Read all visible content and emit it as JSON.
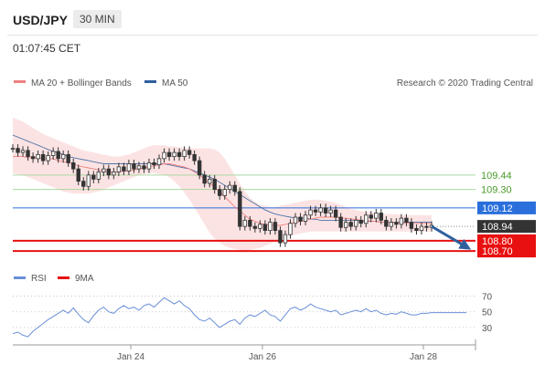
{
  "header": {
    "pair": "USD/JPY",
    "timeframe": "30 MIN",
    "time": "01:07:45 CET"
  },
  "legend": {
    "ma20": "MA 20 + Bollinger Bands",
    "ma50": "MA 50",
    "credit": "Research © 2020 Trading Central",
    "rsi": "RSI",
    "ma9": "9MA"
  },
  "colors": {
    "ma20": "#f08080",
    "ma50": "#2f5f9e",
    "band": "#fbd9d9",
    "support": "#e81010",
    "resistance_green": "#a8d8a0",
    "pivot_blue": "#2a6fdb",
    "current": "#333333",
    "rsi": "#6a8fd8",
    "arrow": "#2f5f9e"
  },
  "chart_data": [
    {
      "type": "line",
      "name": "price",
      "y_unit": "USD/JPY",
      "ylim": [
        108.55,
        110.15
      ],
      "x_ticks": [
        "Jan 24",
        "Jan 26",
        "Jan 28"
      ],
      "levels": [
        {
          "value": 109.44,
          "label": "109.44",
          "kind": "resistance"
        },
        {
          "value": 109.3,
          "label": "109.30",
          "kind": "resistance"
        },
        {
          "value": 109.12,
          "label": "109.12",
          "kind": "pivot"
        },
        {
          "value": 108.94,
          "label": "108.94",
          "kind": "current"
        },
        {
          "value": 108.8,
          "label": "108.80",
          "kind": "support"
        },
        {
          "value": 108.7,
          "label": "108.70",
          "kind": "support"
        }
      ],
      "price_series": [
        109.7,
        109.66,
        109.68,
        109.62,
        109.6,
        109.64,
        109.58,
        109.63,
        109.67,
        109.6,
        109.64,
        109.56,
        109.5,
        109.38,
        109.33,
        109.44,
        109.4,
        109.47,
        109.5,
        109.44,
        109.47,
        109.52,
        109.48,
        109.55,
        109.5,
        109.53,
        109.5,
        109.56,
        109.54,
        109.6,
        109.66,
        109.62,
        109.66,
        109.62,
        109.68,
        109.64,
        109.58,
        109.44,
        109.36,
        109.4,
        109.3,
        109.24,
        109.3,
        109.34,
        109.28,
        108.94,
        109.0,
        108.94,
        108.92,
        108.96,
        108.9,
        108.98,
        108.9,
        108.78,
        108.86,
        108.97,
        109.03,
        108.99,
        109.05,
        109.1,
        109.08,
        109.12,
        109.07,
        109.1,
        109.03,
        108.93,
        108.98,
        108.94,
        109.0,
        108.97,
        109.05,
        109.02,
        109.07,
        109.0,
        108.94,
        108.98,
        108.96,
        109.02,
        108.98,
        108.92,
        108.9,
        108.94,
        108.93,
        108.95
      ],
      "ma20_series": [
        109.62,
        109.62,
        109.62,
        109.61,
        109.61,
        109.61,
        109.6,
        109.6,
        109.6,
        109.58,
        109.57,
        109.56,
        109.55,
        109.53,
        109.52,
        109.51,
        109.5,
        109.49,
        109.48,
        109.47,
        109.47,
        109.47,
        109.48,
        109.48,
        109.49,
        109.5,
        109.51,
        109.52,
        109.53,
        109.54,
        109.55,
        109.55,
        109.54,
        109.53,
        109.52,
        109.5,
        109.47,
        109.44,
        109.4,
        109.36,
        109.32,
        109.28,
        109.23,
        109.18,
        109.13,
        109.09,
        109.05,
        109.01,
        108.99,
        108.97,
        108.96,
        108.95,
        108.95,
        108.95,
        108.96,
        108.97,
        108.98,
        108.99,
        109.0,
        109.01,
        109.02,
        109.03,
        109.03,
        109.03,
        109.03,
        109.02,
        109.02,
        109.01,
        109.01,
        109.0,
        109.0,
        108.99,
        108.99,
        108.98,
        108.98,
        108.98,
        108.98,
        108.97,
        108.97,
        108.97,
        108.97,
        108.97,
        108.97,
        108.97
      ],
      "ma50_series": [
        109.83,
        109.81,
        109.79,
        109.77,
        109.75,
        109.73,
        109.71,
        109.69,
        109.67,
        109.66,
        109.64,
        109.62,
        109.61,
        109.6,
        109.59,
        109.58,
        109.57,
        109.56,
        109.55,
        109.55,
        109.55,
        109.55,
        109.55,
        109.55,
        109.55,
        109.55,
        109.55,
        109.55,
        109.55,
        109.55,
        109.55,
        109.54,
        109.53,
        109.52,
        109.51,
        109.5,
        109.48,
        109.46,
        109.44,
        109.42,
        109.4,
        109.37,
        109.34,
        109.31,
        109.28,
        109.25,
        109.22,
        109.19,
        109.16,
        109.13,
        109.1,
        109.08,
        109.06,
        109.05,
        109.04,
        109.03,
        109.02,
        109.02,
        109.02,
        109.01,
        109.01,
        109.0,
        109.0,
        109.0,
        109.0,
        109.0,
        109.0,
        109.0,
        109.0,
        108.99,
        108.99,
        108.99,
        108.99,
        108.98,
        108.98,
        108.98,
        108.98,
        108.98,
        108.98,
        108.98,
        108.98,
        108.98,
        108.98,
        108.98
      ],
      "band_upper": [
        110.0,
        109.98,
        109.96,
        109.93,
        109.9,
        109.87,
        109.84,
        109.82,
        109.8,
        109.78,
        109.76,
        109.74,
        109.72,
        109.7,
        109.68,
        109.67,
        109.66,
        109.65,
        109.64,
        109.63,
        109.62,
        109.62,
        109.63,
        109.64,
        109.66,
        109.68,
        109.7,
        109.72,
        109.73,
        109.73,
        109.73,
        109.72,
        109.72,
        109.71,
        109.71,
        109.7,
        109.7,
        109.7,
        109.7,
        109.7,
        109.69,
        109.66,
        109.6,
        109.52,
        109.44,
        109.36,
        109.28,
        109.22,
        109.18,
        109.15,
        109.14,
        109.13,
        109.13,
        109.14,
        109.15,
        109.16,
        109.17,
        109.18,
        109.19,
        109.2,
        109.2,
        109.2,
        109.19,
        109.18,
        109.17,
        109.15,
        109.13,
        109.11,
        109.1,
        109.09,
        109.08,
        109.08,
        109.07,
        109.07,
        109.06,
        109.06,
        109.06,
        109.05,
        109.05,
        109.05,
        109.05,
        109.05,
        109.05,
        109.05
      ],
      "band_lower": [
        109.46,
        109.45,
        109.44,
        109.42,
        109.4,
        109.38,
        109.36,
        109.34,
        109.32,
        109.3,
        109.28,
        109.27,
        109.26,
        109.26,
        109.26,
        109.26,
        109.27,
        109.28,
        109.3,
        109.32,
        109.34,
        109.36,
        109.38,
        109.4,
        109.42,
        109.44,
        109.45,
        109.46,
        109.46,
        109.45,
        109.44,
        109.42,
        109.38,
        109.33,
        109.27,
        109.2,
        109.12,
        109.04,
        108.96,
        108.88,
        108.82,
        108.78,
        108.75,
        108.73,
        108.72,
        108.71,
        108.7,
        108.71,
        108.72,
        108.73,
        108.75,
        108.77,
        108.79,
        108.81,
        108.83,
        108.85,
        108.86,
        108.87,
        108.88,
        108.89,
        108.89,
        108.89,
        108.89,
        108.89,
        108.89,
        108.89,
        108.89,
        108.89,
        108.89,
        108.89,
        108.89,
        108.89,
        108.89,
        108.89,
        108.89,
        108.89,
        108.89,
        108.89,
        108.89,
        108.89,
        108.89,
        108.89,
        108.89,
        108.89
      ],
      "forecast_arrow": {
        "from": 108.94,
        "to": 108.74
      }
    },
    {
      "type": "line",
      "name": "rsi",
      "ylim": [
        10,
        80
      ],
      "y_ticks": [
        30,
        50,
        70
      ],
      "rsi_series": [
        22,
        24,
        20,
        18,
        25,
        30,
        35,
        40,
        44,
        48,
        52,
        48,
        55,
        47,
        40,
        36,
        45,
        52,
        56,
        50,
        48,
        54,
        58,
        54,
        56,
        52,
        58,
        60,
        56,
        62,
        68,
        64,
        60,
        64,
        58,
        54,
        46,
        40,
        38,
        42,
        36,
        30,
        34,
        38,
        40,
        34,
        42,
        46,
        44,
        48,
        52,
        46,
        44,
        38,
        46,
        54,
        56,
        52,
        55,
        60,
        56,
        54,
        52,
        50,
        52,
        46,
        48,
        50,
        52,
        50,
        54,
        50,
        52,
        48,
        46,
        48,
        47,
        50,
        48,
        46,
        46,
        48,
        48,
        49
      ],
      "ma9_series": []
    }
  ]
}
